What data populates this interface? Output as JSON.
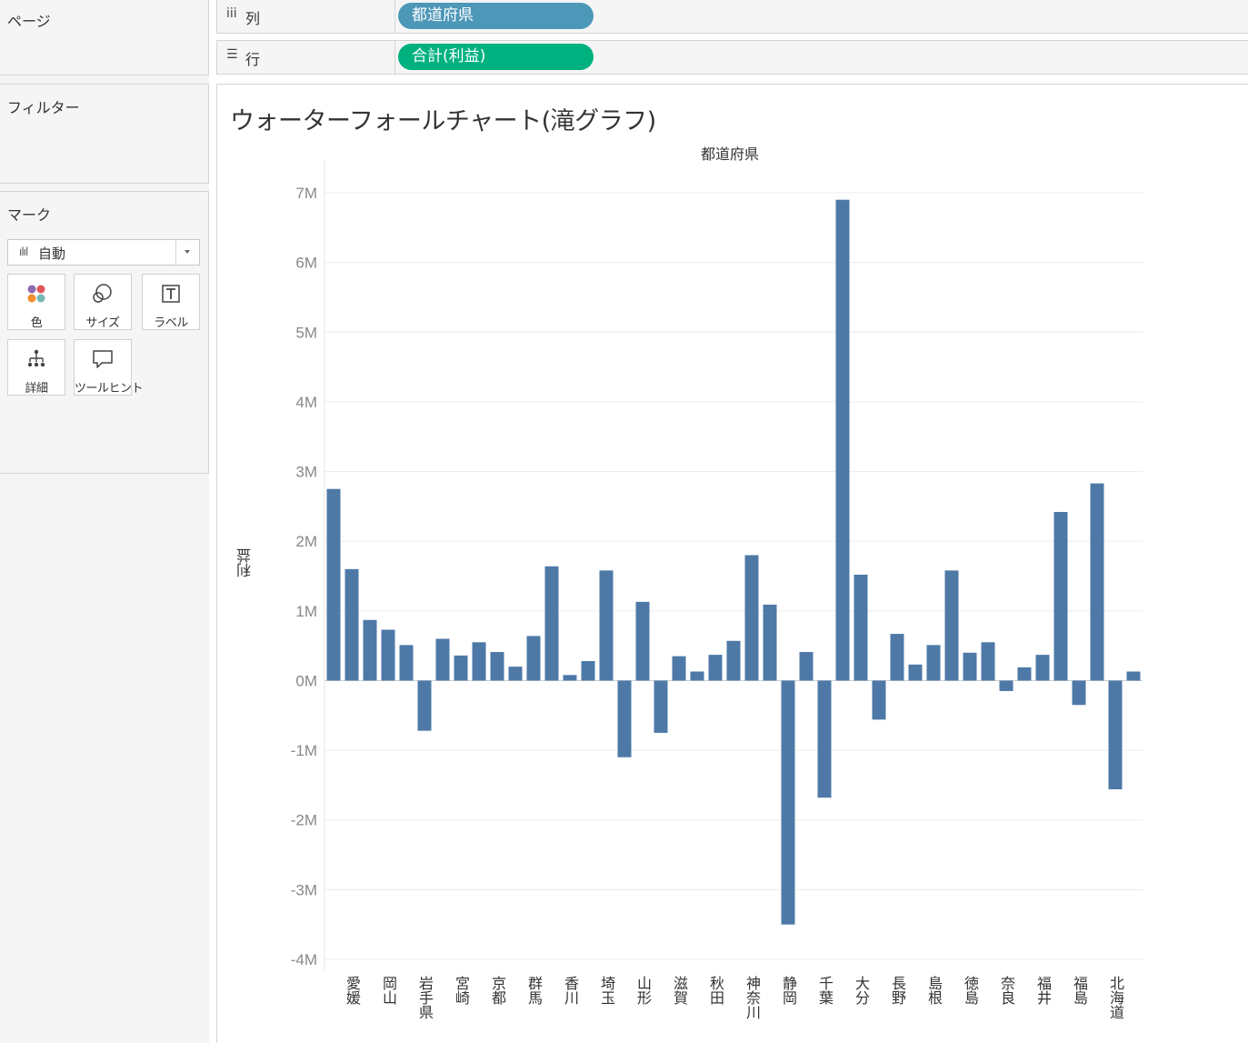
{
  "shelves": {
    "pages_label": "ページ",
    "filters_label": "フィルター",
    "columns_label": "列",
    "rows_label": "行",
    "columns_pill": "都道府県",
    "rows_pill": "合計(利益)"
  },
  "marks": {
    "title": "マーク",
    "type": "自動",
    "buttons": [
      {
        "label": "色",
        "icon": "color-dots-icon"
      },
      {
        "label": "サイズ",
        "icon": "size-circles-icon"
      },
      {
        "label": "ラベル",
        "icon": "text-label-icon"
      },
      {
        "label": "詳細",
        "icon": "detail-tree-icon"
      },
      {
        "label": "ツールヒント",
        "icon": "tooltip-bubble-icon"
      }
    ]
  },
  "sheet": {
    "title": "ウォーターフォールチャート(滝グラフ)"
  },
  "colors": {
    "bar": "#4e79a7",
    "pill_columns": "#4d97b8",
    "pill_rows": "#00b180",
    "gridline": "#ececec"
  },
  "chart_data": {
    "type": "bar",
    "column_header": "都道府県",
    "ylabel": "利益",
    "ylim": [
      -4000000,
      7000000
    ],
    "yticks": [
      7000000,
      6000000,
      5000000,
      4000000,
      3000000,
      2000000,
      1000000,
      0,
      -1000000,
      -2000000,
      -3000000,
      -4000000
    ],
    "ytick_labels": [
      "7M",
      "6M",
      "5M",
      "4M",
      "3M",
      "2M",
      "1M",
      "0M",
      "-1M",
      "-2M",
      "-3M",
      "-4M"
    ],
    "grid": true,
    "visible_category_labels": [
      "愛媛",
      "岡山",
      "岩手県",
      "宮崎",
      "京都",
      "群馬",
      "香川",
      "埼玉",
      "山形",
      "滋賀",
      "秋田",
      "神奈川",
      "静岡",
      "千葉",
      "大分",
      "長野",
      "島根",
      "徳島",
      "奈良",
      "福井",
      "福島",
      "北海道"
    ],
    "label_bar_indices": [
      1,
      3,
      5,
      7,
      9,
      11,
      13,
      15,
      17,
      19,
      21,
      23,
      25,
      27,
      29,
      31,
      33,
      35,
      37,
      39,
      41,
      43
    ],
    "values": [
      2750000,
      1600000,
      870000,
      730000,
      510000,
      -720000,
      600000,
      360000,
      550000,
      410000,
      200000,
      640000,
      1640000,
      80000,
      280000,
      1580000,
      -1100000,
      1130000,
      -750000,
      350000,
      130000,
      370000,
      570000,
      1800000,
      1090000,
      -3500000,
      410000,
      -1680000,
      6900000,
      1520000,
      -560000,
      670000,
      230000,
      510000,
      1580000,
      400000,
      550000,
      -150000,
      190000,
      370000,
      2420000,
      -350000,
      2830000,
      -1560000,
      130000
    ]
  }
}
